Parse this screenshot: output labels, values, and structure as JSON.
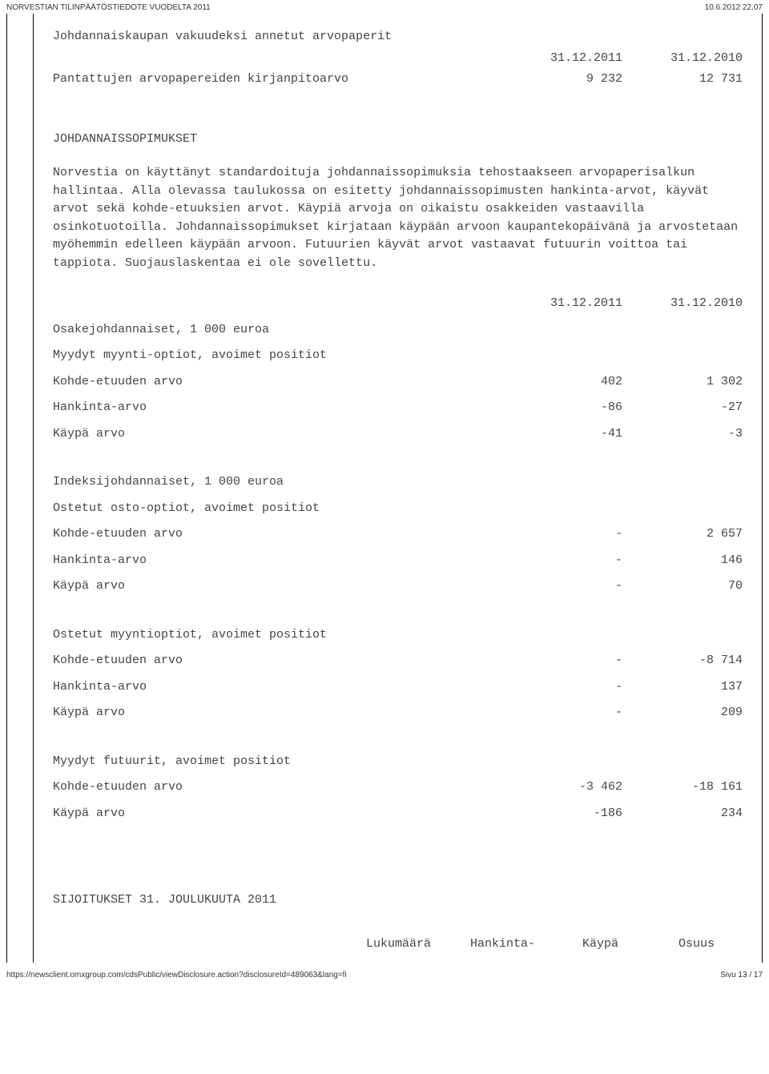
{
  "header": {
    "left": "NORVESTIAN TILINPÄÄTÖSTIEDOTE VUODELTA 2011",
    "right": "10.6.2012 22.07"
  },
  "collateral": {
    "title": "Johdannaiskaupan vakuudeksi annetut arvopaperit",
    "col1": "31.12.2011",
    "col2": "31.12.2010",
    "row_label": "Pantattujen arvopapereiden kirjanpitoarvo",
    "row_v1": "9 232",
    "row_v2": "12 731"
  },
  "deriv": {
    "heading": "JOHDANNAISSOPIMUKSET",
    "paragraph": "Norvestia on käyttänyt standardoituja johdannaissopimuksia tehostaakseen arvopaperisalkun hallintaa. Alla olevassa taulukossa on esitetty johdannaissopimusten hankinta-arvot, käyvät arvot sekä kohde-etuuksien arvot. Käypiä arvoja on oikaistu osakkeiden vastaavilla osinkotuotoilla. Johdannaissopimukset kirjataan käypään arvoon kaupantekopäivänä ja arvostetaan myöhemmin edelleen käypään arvoon. Futuurien käyvät arvot vastaavat futuurin voittoa tai tappiota. Suojauslaskentaa ei ole sovellettu.",
    "col1": "31.12.2011",
    "col2": "31.12.2010",
    "groups": [
      {
        "title": "Osakejohdannaiset, 1 000 euroa",
        "subtitle": "Myydyt myynti-optiot, avoimet positiot",
        "rows": [
          {
            "label": "Kohde-etuuden arvo",
            "v1": "402",
            "v2": "1 302"
          },
          {
            "label": "Hankinta-arvo",
            "v1": "-86",
            "v2": "-27"
          },
          {
            "label": "Käypä arvo",
            "v1": "-41",
            "v2": "-3"
          }
        ]
      },
      {
        "title": "Indeksijohdannaiset, 1 000 euroa",
        "subtitle": "Ostetut osto-optiot, avoimet positiot",
        "rows": [
          {
            "label": "Kohde-etuuden arvo",
            "v1": "-",
            "v2": "2 657"
          },
          {
            "label": "Hankinta-arvo",
            "v1": "-",
            "v2": "146"
          },
          {
            "label": "Käypä arvo",
            "v1": "-",
            "v2": "70"
          }
        ]
      },
      {
        "title": "",
        "subtitle": "Ostetut myyntioptiot, avoimet positiot",
        "rows": [
          {
            "label": "Kohde-etuuden arvo",
            "v1": "-",
            "v2": "-8 714"
          },
          {
            "label": "Hankinta-arvo",
            "v1": "-",
            "v2": "137"
          },
          {
            "label": "Käypä arvo",
            "v1": "-",
            "v2": "209"
          }
        ]
      },
      {
        "title": "",
        "subtitle": "Myydyt futuurit, avoimet positiot",
        "rows": [
          {
            "label": "Kohde-etuuden arvo",
            "v1": "-3 462",
            "v2": "-18 161"
          },
          {
            "label": "Käypä arvo",
            "v1": "-186",
            "v2": "234"
          }
        ]
      }
    ]
  },
  "invest": {
    "heading": "SIJOITUKSET 31. JOULUKUUTA 2011",
    "cols": {
      "c2": "Lukumäärä",
      "c3": "Hankinta-",
      "c4": "Käypä",
      "c5": "Osuus"
    }
  },
  "footer": {
    "url": "https://newsclient.omxgroup.com/cdsPublic/viewDisclosure.action?disclosureId=489063&lang=fi",
    "page": "Sivu 13 / 17"
  }
}
